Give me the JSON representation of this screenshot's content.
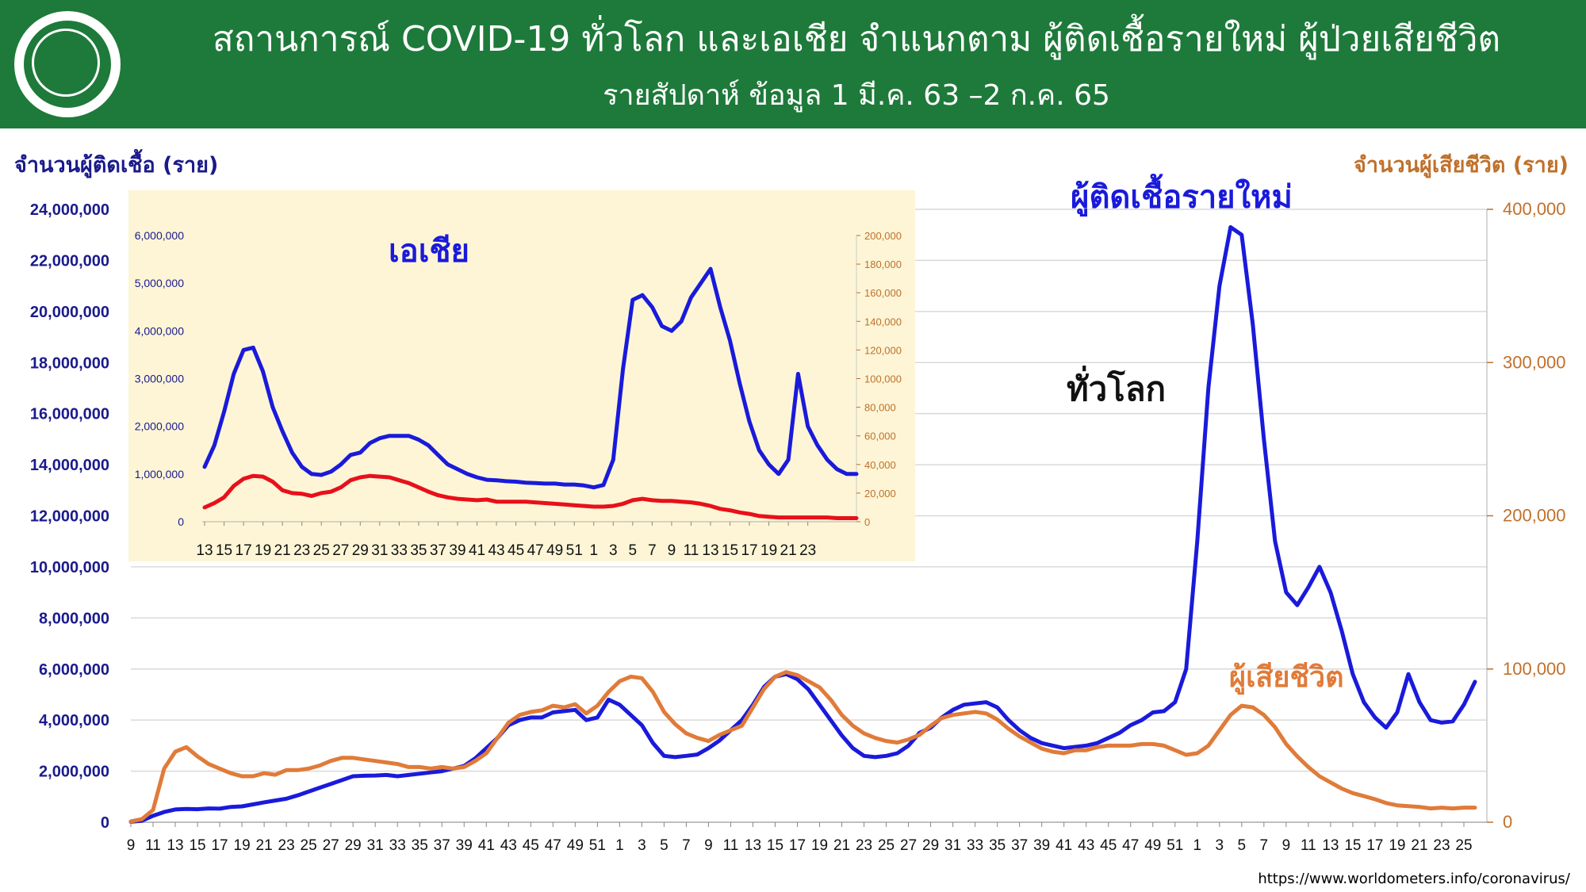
{
  "header": {
    "title": "สถานการณ์ COVID-19 ทั่วโลก และเอเชีย จำแนกตาม ผู้ติดเชื้อรายใหม่ ผู้ป่วยเสียชีวิต",
    "subtitle": "รายสัปดาห์ ข้อมูล 1 มี.ค. 63 –2 ก.ค. 65",
    "logo_icon": "ministry-of-public-health-logo"
  },
  "source": "https://www.worldometers.info/coronavirus/",
  "colors": {
    "cases": "#1a1adb",
    "deaths_world": "#e07b39",
    "deaths_asia": "#e8101a",
    "header": "#1e7a3a",
    "inset_bg": "#fdf5d6",
    "left_axis": "#1a1a8c",
    "right_axis": "#c0702a"
  },
  "chart_data": [
    {
      "type": "line",
      "panel": "world",
      "label": "ทั่วโลก",
      "ylabel_left": "จำนวนผู้ติดเชื้อ (ราย)",
      "ylabel_right": "จำนวนผู้เสียชีวิต (ราย)",
      "ylim_left": [
        0,
        24000000
      ],
      "ylim_right": [
        0,
        400000
      ],
      "yticks_left": [
        "0",
        "2,000,000",
        "4,000,000",
        "6,000,000",
        "8,000,000",
        "10,000,000",
        "12,000,000",
        "14,000,000",
        "16,000,000",
        "18,000,000",
        "20,000,000",
        "22,000,000",
        "24,000,000"
      ],
      "yticks_right": [
        "0",
        "100,000",
        "200,000",
        "300,000",
        "400,000"
      ],
      "xtick_labels": [
        "9",
        "11",
        "13",
        "15",
        "17",
        "19",
        "21",
        "23",
        "25",
        "27",
        "29",
        "31",
        "33",
        "35",
        "37",
        "39",
        "41",
        "43",
        "45",
        "47",
        "49",
        "51",
        "1",
        "3",
        "5",
        "7",
        "9",
        "11",
        "13",
        "15",
        "17",
        "19",
        "21",
        "23",
        "25",
        "27",
        "29",
        "31",
        "33",
        "35",
        "37",
        "39",
        "41",
        "43",
        "45",
        "47",
        "49",
        "51",
        "1",
        "3",
        "5",
        "7",
        "9",
        "11",
        "13",
        "15",
        "17",
        "19",
        "21",
        "23",
        "25"
      ],
      "annotations": [
        "ผู้ติดเชื้อรายใหม่",
        "ผู้เสียชีวิต"
      ],
      "grid": true,
      "series": [
        {
          "name": "ผู้ติดเชื้อรายใหม่",
          "axis": "left",
          "color": "#1a1adb",
          "values": [
            20000,
            60000,
            250000,
            400000,
            500000,
            520000,
            510000,
            540000,
            530000,
            600000,
            620000,
            700000,
            780000,
            850000,
            920000,
            1050000,
            1200000,
            1350000,
            1500000,
            1650000,
            1800000,
            1820000,
            1830000,
            1850000,
            1800000,
            1850000,
            1900000,
            1950000,
            2000000,
            2100000,
            2200000,
            2500000,
            2900000,
            3300000,
            3800000,
            4000000,
            4100000,
            4100000,
            4300000,
            4350000,
            4400000,
            4000000,
            4100000,
            4800000,
            4600000,
            4200000,
            3800000,
            3100000,
            2600000,
            2550000,
            2600000,
            2650000,
            2900000,
            3200000,
            3600000,
            4000000,
            4600000,
            5300000,
            5700000,
            5800000,
            5600000,
            5200000,
            4600000,
            4000000,
            3400000,
            2900000,
            2600000,
            2550000,
            2600000,
            2700000,
            3000000,
            3500000,
            3700000,
            4100000,
            4400000,
            4600000,
            4650000,
            4700000,
            4500000,
            4000000,
            3600000,
            3300000,
            3100000,
            3000000,
            2900000,
            2950000,
            3000000,
            3100000,
            3300000,
            3500000,
            3800000,
            4000000,
            4300000,
            4350000,
            4700000,
            6000000,
            11000000,
            17000000,
            21000000,
            23300000,
            23000000,
            19500000,
            15000000,
            11000000,
            9000000,
            8500000,
            9200000,
            10000000,
            9000000,
            7500000,
            5800000,
            4700000,
            4100000,
            3700000,
            4300000,
            5800000,
            4700000,
            4000000,
            3900000,
            3950000,
            4600000,
            5500000
          ]
        },
        {
          "name": "ผู้เสียชีวิต",
          "axis": "right",
          "color": "#e07b39",
          "values": [
            500,
            2000,
            8000,
            35000,
            46000,
            49000,
            43000,
            38000,
            35000,
            32000,
            30000,
            30000,
            32000,
            31000,
            34000,
            34000,
            35000,
            37000,
            40000,
            42000,
            42000,
            41000,
            40000,
            39000,
            38000,
            36000,
            36000,
            35000,
            36000,
            35000,
            36000,
            40000,
            45000,
            55000,
            65000,
            70000,
            72000,
            73000,
            76000,
            75000,
            77000,
            71000,
            76000,
            85000,
            92000,
            95000,
            94000,
            85000,
            72000,
            64000,
            58000,
            55000,
            53000,
            57000,
            60000,
            63000,
            75000,
            87000,
            95000,
            98000,
            96000,
            92000,
            88000,
            80000,
            70000,
            63000,
            58000,
            55000,
            53000,
            52000,
            54000,
            57000,
            63000,
            68000,
            70000,
            71000,
            72000,
            71000,
            67000,
            61000,
            56000,
            52000,
            48000,
            46000,
            45000,
            47000,
            47000,
            49000,
            50000,
            50000,
            50000,
            51000,
            51000,
            50000,
            47000,
            44000,
            45000,
            50000,
            60000,
            70000,
            76000,
            75000,
            70000,
            62000,
            51000,
            43000,
            36000,
            30000,
            26000,
            22000,
            19000,
            17000,
            15000,
            12500,
            11000,
            10500,
            10000,
            9000,
            9500,
            9000,
            9500,
            9500
          ]
        }
      ]
    },
    {
      "type": "line",
      "panel": "asia",
      "label": "เอเชีย",
      "ylim_left": [
        0,
        6000000
      ],
      "ylim_right": [
        0,
        200000
      ],
      "yticks_left": [
        "0",
        "1,000,000",
        "2,000,000",
        "3,000,000",
        "4,000,000",
        "5,000,000",
        "6,000,000"
      ],
      "yticks_right": [
        "0",
        "20,000",
        "40,000",
        "60,000",
        "80,000",
        "100,000",
        "120,000",
        "140,000",
        "160,000",
        "180,000",
        "200,000"
      ],
      "xtick_labels": [
        "13",
        "15",
        "17",
        "19",
        "21",
        "23",
        "25",
        "27",
        "29",
        "31",
        "33",
        "35",
        "37",
        "39",
        "41",
        "43",
        "45",
        "47",
        "49",
        "51",
        "1",
        "3",
        "5",
        "7",
        "9",
        "11",
        "13",
        "15",
        "17",
        "19",
        "21",
        "23"
      ],
      "grid": false,
      "series": [
        {
          "name": "ผู้ติดเชื้อรายใหม่",
          "axis": "left",
          "color": "#1a1adb",
          "values": [
            1150000,
            1600000,
            2300000,
            3100000,
            3600000,
            3650000,
            3150000,
            2400000,
            1900000,
            1450000,
            1150000,
            1000000,
            980000,
            1050000,
            1200000,
            1400000,
            1450000,
            1650000,
            1750000,
            1800000,
            1800000,
            1800000,
            1720000,
            1600000,
            1400000,
            1200000,
            1100000,
            1000000,
            930000,
            880000,
            870000,
            850000,
            840000,
            820000,
            810000,
            800000,
            800000,
            780000,
            780000,
            760000,
            720000,
            770000,
            1300000,
            3200000,
            4650000,
            4750000,
            4500000,
            4100000,
            4000000,
            4200000,
            4700000,
            5000000,
            5300000,
            4500000,
            3800000,
            2900000,
            2100000,
            1500000,
            1200000,
            1000000,
            1300000,
            3100000,
            2000000,
            1600000,
            1300000,
            1100000,
            1000000,
            1000000
          ]
        },
        {
          "name": "ผู้เสียชีวิต",
          "axis": "right",
          "color": "#e8101a",
          "values": [
            10000,
            13000,
            17000,
            25000,
            30000,
            32000,
            31500,
            28000,
            22000,
            20000,
            19500,
            18000,
            20000,
            21000,
            24000,
            29000,
            31000,
            32000,
            31500,
            31000,
            29000,
            27000,
            24000,
            21000,
            18500,
            17000,
            16000,
            15500,
            15000,
            15500,
            14000,
            14000,
            14000,
            14000,
            13500,
            13000,
            12500,
            12000,
            11500,
            11000,
            10500,
            10500,
            11000,
            12500,
            15000,
            16000,
            15000,
            14500,
            14500,
            14000,
            13500,
            12500,
            11000,
            9000,
            8000,
            6500,
            5500,
            4000,
            3500,
            3000,
            3000,
            3000,
            3000,
            3000,
            3000,
            2500,
            2500,
            2500
          ]
        }
      ]
    }
  ]
}
